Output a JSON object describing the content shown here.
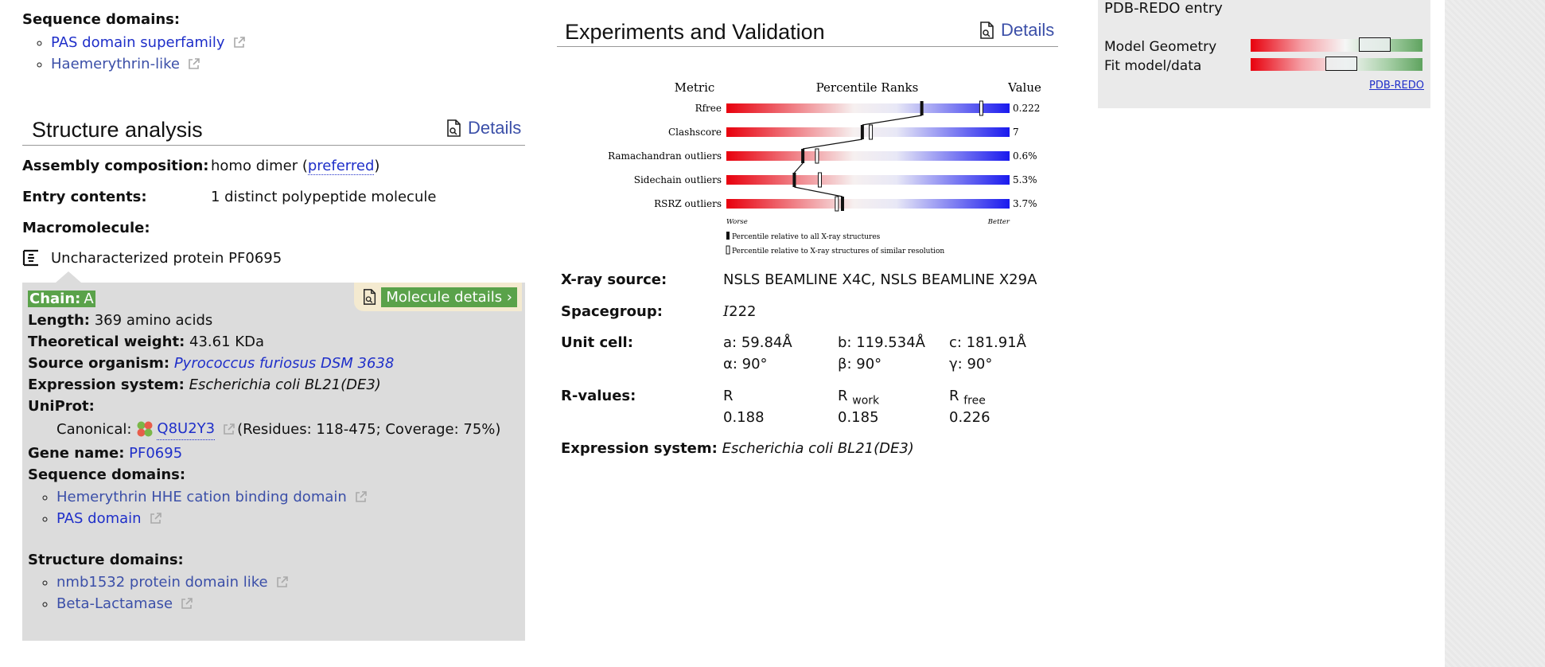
{
  "left": {
    "seq_domains_title": "Sequence domains:",
    "seq_domains": [
      "PAS domain superfamily",
      "Haemerythrin-like"
    ],
    "structure_title": "Structure analysis",
    "details_label": "Details",
    "assembly_label": "Assembly composition:",
    "assembly_value": "homo dimer (",
    "assembly_link": "preferred",
    "assembly_close": ")",
    "entry_label": "Entry contents:",
    "entry_value": "1 distinct polypeptide molecule",
    "macro_label": "Macromolecule:",
    "macro_name": "Uncharacterized protein PF0695",
    "chain": {
      "chain_label": "Chain:",
      "chain_id": "A",
      "mol_details": "Molecule details ›",
      "length_label": "Length:",
      "length_value": "369 amino acids",
      "weight_label": "Theoretical weight:",
      "weight_value": "43.61 KDa",
      "organism_label": "Source organism:",
      "organism_value": "Pyrococcus furiosus DSM 3638",
      "expr_label": "Expression system:",
      "expr_value": "Escherichia coli BL21(DE3)",
      "uniprot_label": "UniProt:",
      "canonical_label": "Canonical:",
      "canonical_id": "Q8U2Y3",
      "canonical_rest": "(Residues: 118-475; Coverage: 75%)",
      "gene_label": "Gene name:",
      "gene_value": "PF0695",
      "seq_label": "Sequence domains:",
      "seq_items": [
        "Hemerythrin HHE cation binding domain",
        "PAS domain"
      ],
      "struct_label": "Structure domains:",
      "struct_items": [
        "nmb1532 protein domain like",
        "Beta-Lactamase"
      ]
    }
  },
  "middle": {
    "title": "Experiments and Validation",
    "details_label": "Details",
    "chart_data": {
      "type": "bar",
      "title": "",
      "headers": [
        "Metric",
        "Percentile Ranks",
        "Value"
      ],
      "categories": [
        "Rfree",
        "Clashscore",
        "Ramachandran outliers",
        "Sidechain outliers",
        "RSRZ outliers"
      ],
      "value_labels": [
        "0.222",
        "7",
        "0.6%",
        "5.3%",
        "3.7%"
      ],
      "series": [
        {
          "name": "Percentile relative to all X-ray structures",
          "values": [
            69,
            48,
            27,
            24,
            41
          ]
        },
        {
          "name": "Percentile relative to X-ray structures of similar resolution",
          "values": [
            90,
            51,
            32,
            33,
            39
          ]
        }
      ],
      "ylim": [
        0,
        100
      ],
      "xaxis_left": "Worse",
      "xaxis_right": "Better",
      "colors": {
        "worse": "#e8000d",
        "mid": "#f6f6f6",
        "better": "#1a1aee"
      }
    },
    "xray_label": "X-ray source:",
    "xray_value": "NSLS BEAMLINE X4C, NSLS BEAMLINE X29A",
    "space_label": "Spacegroup:",
    "space_value_italic": "I",
    "space_value": "222",
    "cell_label": "Unit cell:",
    "cell": {
      "a": "a: 59.84Å",
      "b": "b: 119.534Å",
      "c": "c: 181.91Å",
      "alpha": "α: 90°",
      "beta": "β: 90°",
      "gamma": "γ: 90°"
    },
    "rvalues_label": "R-values:",
    "r_head": "R",
    "rwork_head": "R",
    "rwork_sub": "work",
    "rfree_head": "R",
    "rfree_sub": "free",
    "r_value": "0.188",
    "rwork_value": "0.185",
    "rfree_value": "0.226",
    "expr_label": "Expression system:",
    "expr_value": "Escherichia coli BL21(DE3)"
  },
  "redo": {
    "title": "PDB-REDO entry",
    "rows": [
      {
        "label": "Model Geometry",
        "value": 0.72
      },
      {
        "label": "Fit model/data",
        "value": 0.53
      }
    ],
    "link": "PDB-REDO"
  }
}
